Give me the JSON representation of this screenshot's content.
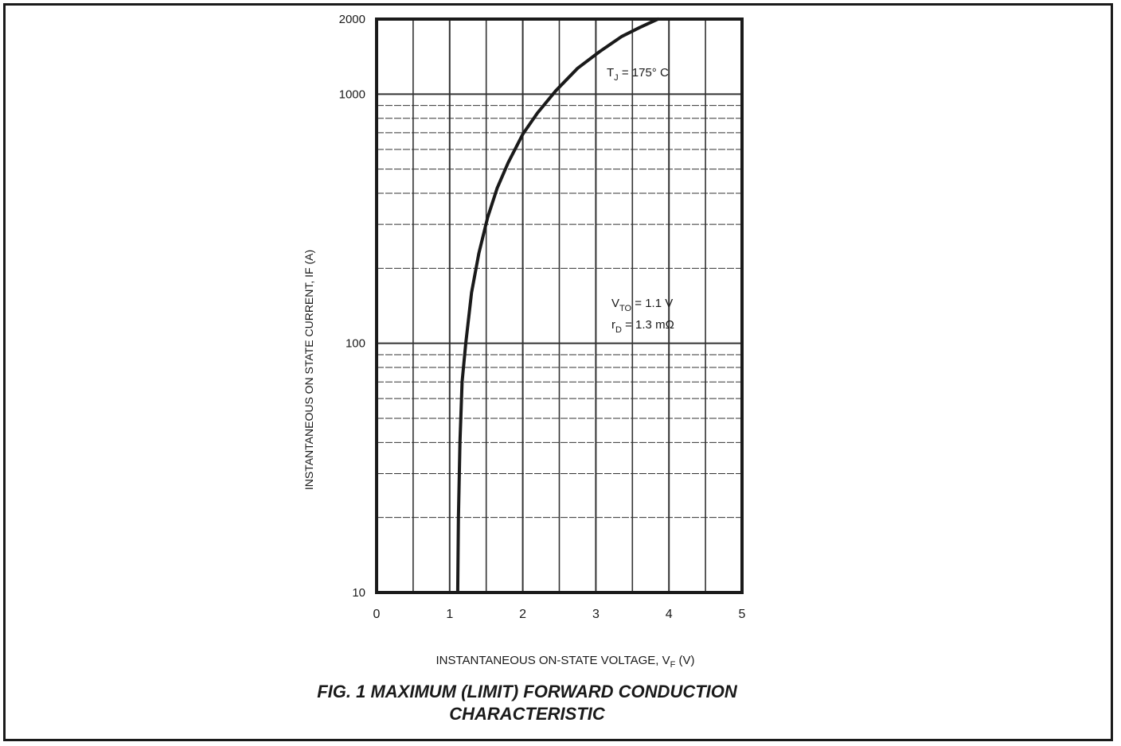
{
  "chart_data": {
    "type": "line",
    "title": "FIG. 1 MAXIMUM (LIMIT) FORWARD CONDUCTION CHARACTERISTIC",
    "title_lines": [
      "FIG. 1 MAXIMUM (LIMIT) FORWARD CONDUCTION",
      "CHARACTERISTIC"
    ],
    "xlabel_prefix": "INSTANTANEOUS ON-STATE VOLTAGE, V",
    "xlabel_sub": "F",
    "xlabel_suffix": " (V)",
    "ylabel": "INSTANTANEOUS ON STATE CURRENT, IF (A)",
    "xlim": [
      0,
      5
    ],
    "ylim": [
      10,
      2000
    ],
    "yscale": "log",
    "grid": true,
    "legend": "none",
    "x_ticks": [
      0,
      1,
      2,
      3,
      4,
      5
    ],
    "x_tick_labels": [
      "0",
      "1",
      "2",
      "3",
      "4",
      "5"
    ],
    "y_ticks": [
      10,
      100,
      1000,
      2000
    ],
    "y_tick_labels": [
      "10",
      "100",
      "1000",
      "2000"
    ],
    "series": [
      {
        "x": [
          1.11,
          1.12,
          1.14,
          1.17,
          1.22,
          1.3,
          1.4,
          1.52,
          1.65,
          1.8,
          2.0,
          2.2,
          2.45,
          2.75,
          3.05,
          3.35,
          3.6,
          3.85
        ],
        "values": [
          10,
          20,
          40,
          70,
          100,
          160,
          230,
          320,
          420,
          530,
          690,
          840,
          1030,
          1270,
          1480,
          1700,
          1850,
          2000
        ]
      }
    ],
    "annotations": {
      "tj": {
        "main": "T",
        "sub": "J",
        "rest": " =  175° C"
      },
      "vto": {
        "main": "V",
        "sub": "TO",
        "rest": " = 1.1 V"
      },
      "rd": {
        "main": "r",
        "sub": "D",
        "rest": " = 1.3 mΩ"
      }
    }
  },
  "colors": {
    "ink": "#1a1a1a",
    "grid": "#333333",
    "background": "#ffffff"
  }
}
